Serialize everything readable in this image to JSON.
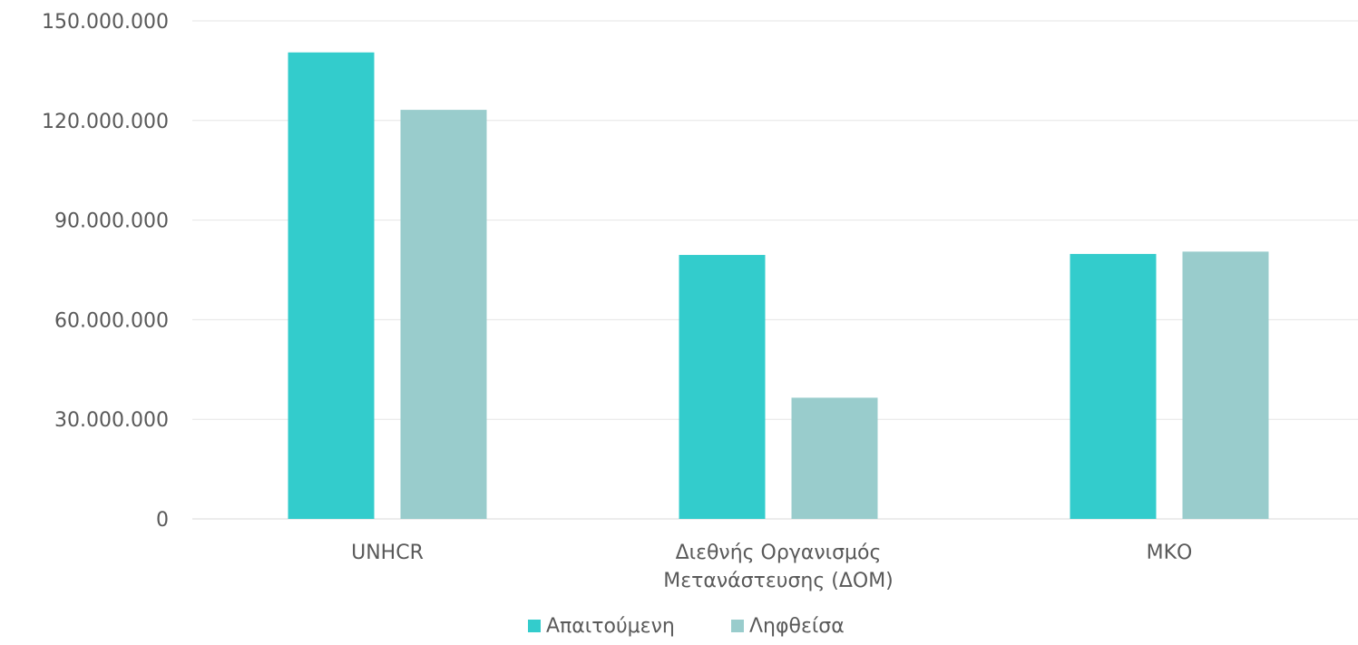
{
  "chart_data": {
    "type": "bar",
    "categories": [
      [
        "UNHCR"
      ],
      [
        "Διεθνής Οργανισμός",
        "Μετανάστευσης (ΔΟΜ)"
      ],
      [
        "ΜΚΟ"
      ]
    ],
    "series": [
      {
        "name": "Απαιτούμενη",
        "color": "#33cccc",
        "values": [
          140500000,
          79500000,
          79800000
        ]
      },
      {
        "name": "Ληφθείσα",
        "color": "#99cccc",
        "values": [
          123200000,
          36500000,
          80500000
        ]
      }
    ],
    "ylim": [
      0,
      150000000
    ],
    "yticks": [
      0,
      30000000,
      60000000,
      90000000,
      120000000,
      150000000
    ],
    "ytick_labels": [
      "0",
      "30.000.000",
      "60.000.000",
      "90.000.000",
      "120.000.000",
      "150.000.000"
    ],
    "grid": true,
    "legend_position": "bottom",
    "title": "",
    "xlabel": "",
    "ylabel": ""
  }
}
